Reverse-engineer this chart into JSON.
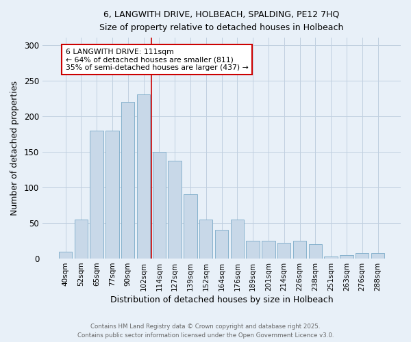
{
  "title_line1": "6, LANGWITH DRIVE, HOLBEACH, SPALDING, PE12 7HQ",
  "title_line2": "Size of property relative to detached houses in Holbeach",
  "xlabel": "Distribution of detached houses by size in Holbeach",
  "ylabel": "Number of detached properties",
  "categories": [
    "40sqm",
    "52sqm",
    "65sqm",
    "77sqm",
    "90sqm",
    "102sqm",
    "114sqm",
    "127sqm",
    "139sqm",
    "152sqm",
    "164sqm",
    "176sqm",
    "189sqm",
    "201sqm",
    "214sqm",
    "226sqm",
    "238sqm",
    "251sqm",
    "263sqm",
    "276sqm",
    "288sqm"
  ],
  "values": [
    10,
    55,
    180,
    180,
    220,
    230,
    150,
    137,
    90,
    55,
    40,
    55,
    25,
    25,
    22,
    25,
    20,
    3,
    5,
    8,
    8
  ],
  "bar_color": "#c8d8e8",
  "bar_edge_color": "#7aaac8",
  "grid_color": "#c0cfe0",
  "background_color": "#e8f0f8",
  "red_line_x": 6,
  "annotation_text": "6 LANGWITH DRIVE: 111sqm\n← 64% of detached houses are smaller (811)\n35% of semi-detached houses are larger (437) →",
  "annotation_box_color": "#ffffff",
  "annotation_box_edge": "#cc0000",
  "red_line_color": "#cc0000",
  "footnote_line1": "Contains HM Land Registry data © Crown copyright and database right 2025.",
  "footnote_line2": "Contains public sector information licensed under the Open Government Licence v3.0.",
  "ylim": [
    0,
    310
  ],
  "yticks": [
    0,
    50,
    100,
    150,
    200,
    250,
    300
  ]
}
